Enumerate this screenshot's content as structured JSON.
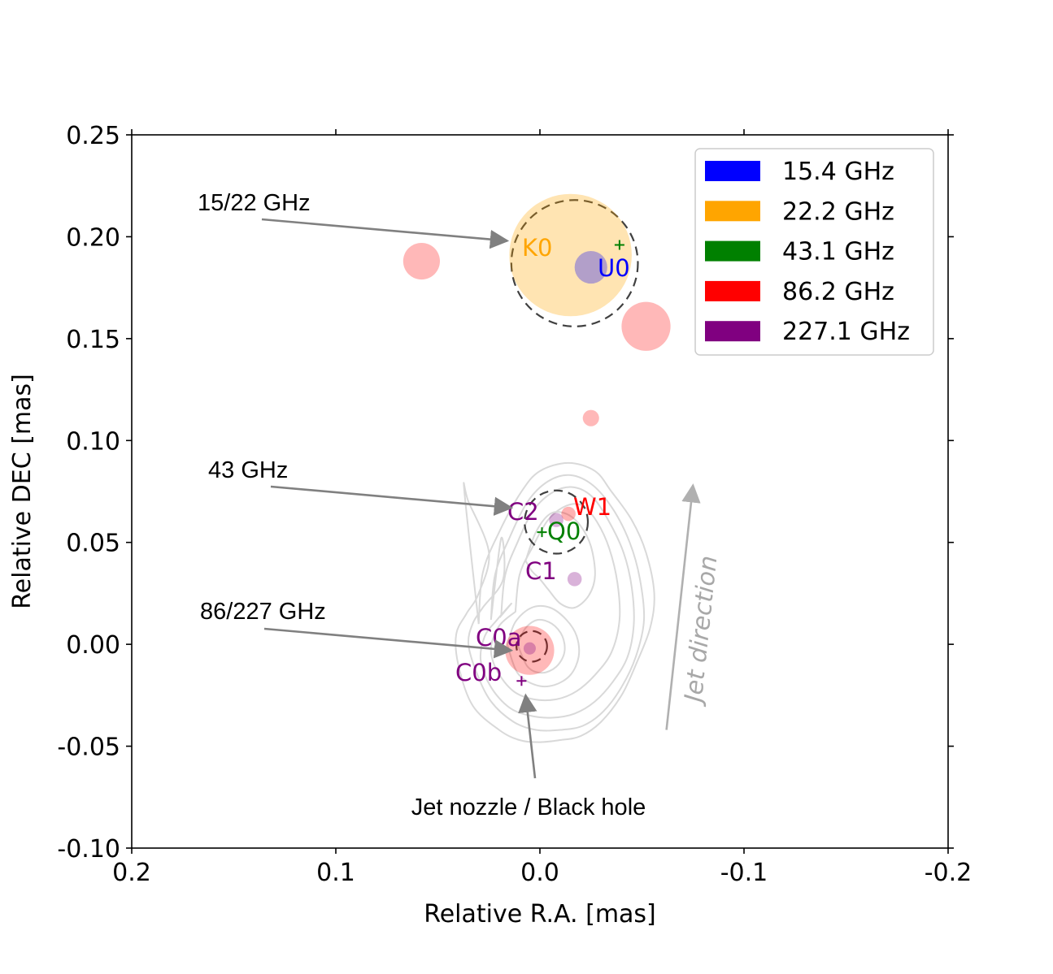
{
  "chart_data": {
    "type": "scatter",
    "title": "",
    "xlabel": "Relative R.A. [mas]",
    "ylabel": "Relative DEC [mas]",
    "xlim": [
      0.2,
      -0.2
    ],
    "ylim": [
      -0.1,
      0.25
    ],
    "x_inverted": true,
    "grid": false,
    "legend_position": "top-right",
    "x_ticks": [
      0.2,
      0.1,
      0.0,
      -0.1,
      -0.2
    ],
    "x_tick_labels": [
      "0.2",
      "0.1",
      "0.0",
      "-0.1",
      "-0.2"
    ],
    "y_ticks": [
      0.25,
      0.2,
      0.15,
      0.1,
      0.05,
      0.0,
      -0.05,
      -0.1
    ],
    "y_tick_labels": [
      "0.25",
      "0.20",
      "0.15",
      "0.10",
      "0.05",
      "0.00",
      "-0.05",
      "-0.10"
    ],
    "legend": [
      {
        "label": "15.4 GHz",
        "color": "#0000ff"
      },
      {
        "label": "22.2 GHz",
        "color": "#ffa500"
      },
      {
        "label": "43.1 GHz",
        "color": "#008000"
      },
      {
        "label": "86.2 GHz",
        "color": "#ff0000"
      },
      {
        "label": "227.1 GHz",
        "color": "#800080"
      }
    ],
    "components": [
      {
        "name": "K0",
        "band": "22.2 GHz",
        "x": -0.015,
        "y": 0.191,
        "size": 0.03,
        "color": "#ffa500"
      },
      {
        "name": "U0",
        "band": "15.4 GHz",
        "x": -0.025,
        "y": 0.185,
        "size": 0.008,
        "color": "#0000ff"
      },
      {
        "name": "Q0",
        "band": "43.1 GHz",
        "x": -0.001,
        "y": 0.055,
        "size": 0.0,
        "color": "#008000"
      },
      {
        "name": "W1",
        "band": "86.2 GHz",
        "x": -0.014,
        "y": 0.064,
        "size": 0.0035,
        "color": "#ff0000"
      },
      {
        "name": "C2",
        "band": "227.1 GHz",
        "x": -0.008,
        "y": 0.061,
        "size": 0.0035,
        "color": "#800080"
      },
      {
        "name": "C1",
        "band": "227.1 GHz",
        "x": -0.017,
        "y": 0.032,
        "size": 0.0035,
        "color": "#800080"
      },
      {
        "name": "C0a",
        "band": "227.1 GHz",
        "x": 0.005,
        "y": -0.002,
        "size": 0.003,
        "color": "#800080"
      },
      {
        "name": "C0b",
        "band": "227.1 GHz",
        "x": 0.009,
        "y": -0.018,
        "size": 0.0,
        "color": "#800080"
      }
    ],
    "label_text": {
      "K0": "K0",
      "U0": "U0",
      "Q0": "Q0",
      "W1": "W1",
      "C2": "C2",
      "C1": "C1",
      "C0a": "C0a",
      "C0b": "C0b"
    },
    "extra_86ghz_components": [
      {
        "x": 0.058,
        "y": 0.188,
        "size": 0.009
      },
      {
        "x": -0.052,
        "y": 0.156,
        "size": 0.012
      },
      {
        "x": -0.025,
        "y": 0.111,
        "size": 0.004
      },
      {
        "x": 0.005,
        "y": -0.003,
        "size": 0.012
      }
    ],
    "extra_43ghz_markers": [
      {
        "x": -0.039,
        "y": 0.196
      }
    ],
    "beam_circles": [
      {
        "x": -0.017,
        "y": 0.187,
        "radius": 0.031
      },
      {
        "x": -0.008,
        "y": 0.06,
        "radius": 0.0155
      },
      {
        "x": 0.004,
        "y": -0.001,
        "radius": 0.0075
      }
    ],
    "annotations": [
      {
        "text": "15/22 GHz",
        "text_x": 0.134,
        "text_y": 0.215,
        "arrow_to_x": 0.016,
        "arrow_to_y": 0.198
      },
      {
        "text": "43 GHz",
        "text_x": 0.139,
        "text_y": 0.086,
        "arrow_to_x": 0.014,
        "arrow_to_y": 0.067
      },
      {
        "text": "86/227 GHz",
        "text_x": 0.134,
        "text_y": 0.016,
        "arrow_to_x": 0.014,
        "arrow_to_y": -0.003
      },
      {
        "text": "Jet nozzle / Black hole",
        "text_x": 0.004,
        "text_y": -0.08,
        "arrow_to_x": 0.007,
        "arrow_to_y": -0.025
      }
    ],
    "jet_direction": {
      "text": "Jet direction",
      "from_x": -0.062,
      "from_y": -0.042,
      "to_x": -0.075,
      "to_y": 0.078
    },
    "contours": [
      {
        "x": [
          0.03,
          0.028,
          0.02,
          0.009,
          0.0,
          -0.014,
          -0.027,
          -0.035,
          -0.045,
          -0.052,
          -0.056,
          -0.054,
          -0.047,
          -0.04,
          -0.03,
          -0.02,
          -0.01,
          0.0,
          0.01,
          0.02,
          0.033,
          0.04,
          0.041,
          0.036,
          0.03,
          0.025,
          0.035,
          0.037,
          0.03
        ],
        "y": [
          0.01,
          0.035,
          0.055,
          0.075,
          0.085,
          0.089,
          0.085,
          0.075,
          0.061,
          0.045,
          0.025,
          0.008,
          -0.01,
          -0.025,
          -0.038,
          -0.045,
          -0.047,
          -0.048,
          -0.047,
          -0.042,
          -0.03,
          -0.01,
          0.005,
          0.015,
          0.025,
          0.045,
          0.07,
          0.075,
          0.01
        ]
      },
      {
        "x": [
          0.024,
          0.022,
          0.015,
          0.006,
          -0.004,
          -0.015,
          -0.026,
          -0.036,
          -0.044,
          -0.049,
          -0.051,
          -0.047,
          -0.04,
          -0.031,
          -0.021,
          -0.01,
          0.002,
          0.013,
          0.024,
          0.031,
          0.035,
          0.033,
          0.028,
          0.018,
          0.019,
          0.024
        ],
        "y": [
          0.012,
          0.034,
          0.052,
          0.07,
          0.08,
          0.083,
          0.078,
          0.066,
          0.05,
          0.032,
          0.012,
          -0.006,
          -0.021,
          -0.033,
          -0.04,
          -0.042,
          -0.042,
          -0.038,
          -0.028,
          -0.014,
          0.0,
          0.01,
          0.018,
          0.032,
          0.052,
          0.012
        ]
      },
      {
        "x": [
          0.019,
          0.017,
          0.011,
          0.003,
          -0.007,
          -0.017,
          -0.026,
          -0.034,
          -0.041,
          -0.045,
          -0.046,
          -0.043,
          -0.036,
          -0.027,
          -0.017,
          -0.006,
          0.005,
          0.015,
          0.024,
          0.029,
          0.027,
          0.021,
          0.014,
          0.019
        ],
        "y": [
          0.014,
          0.034,
          0.05,
          0.066,
          0.075,
          0.077,
          0.072,
          0.06,
          0.045,
          0.028,
          0.01,
          -0.006,
          -0.018,
          -0.028,
          -0.034,
          -0.036,
          -0.035,
          -0.031,
          -0.021,
          -0.008,
          0.004,
          0.012,
          0.02,
          0.014
        ]
      },
      {
        "x": [
          0.012,
          0.01,
          0.004,
          -0.004,
          -0.013,
          -0.021,
          -0.028,
          -0.034,
          -0.038,
          -0.039,
          -0.035,
          -0.027,
          -0.018,
          -0.008,
          0.003,
          0.013,
          0.021,
          0.024,
          0.02,
          0.012
        ],
        "y": [
          0.016,
          0.034,
          0.047,
          0.061,
          0.068,
          0.068,
          0.06,
          0.047,
          0.03,
          0.012,
          -0.004,
          -0.015,
          -0.023,
          -0.027,
          -0.027,
          -0.023,
          -0.013,
          -0.002,
          0.009,
          0.016
        ]
      },
      {
        "x": [
          0.007,
          0.002,
          -0.005,
          -0.013,
          -0.02,
          -0.025,
          -0.027,
          -0.024,
          -0.017,
          -0.01,
          -0.004,
          0.0,
          0.004,
          0.007
        ],
        "y": [
          0.041,
          0.055,
          0.064,
          0.064,
          0.058,
          0.048,
          0.034,
          0.024,
          0.018,
          0.02,
          0.027,
          0.032,
          0.036,
          0.041
        ]
      },
      {
        "x": [
          0.016,
          0.012,
          0.004,
          -0.005,
          -0.013,
          -0.018,
          -0.019,
          -0.015,
          -0.007,
          0.002,
          0.011,
          0.016
        ],
        "y": [
          0.0,
          0.011,
          0.018,
          0.018,
          0.012,
          0.004,
          -0.006,
          -0.015,
          -0.02,
          -0.02,
          -0.014,
          0.0
        ]
      },
      {
        "x": [
          0.011,
          0.007,
          0.001,
          -0.006,
          -0.011,
          -0.012,
          -0.008,
          -0.001,
          0.006,
          0.011
        ],
        "y": [
          0.0,
          0.008,
          0.012,
          0.01,
          0.004,
          -0.004,
          -0.011,
          -0.014,
          -0.011,
          0.0
        ]
      }
    ]
  }
}
